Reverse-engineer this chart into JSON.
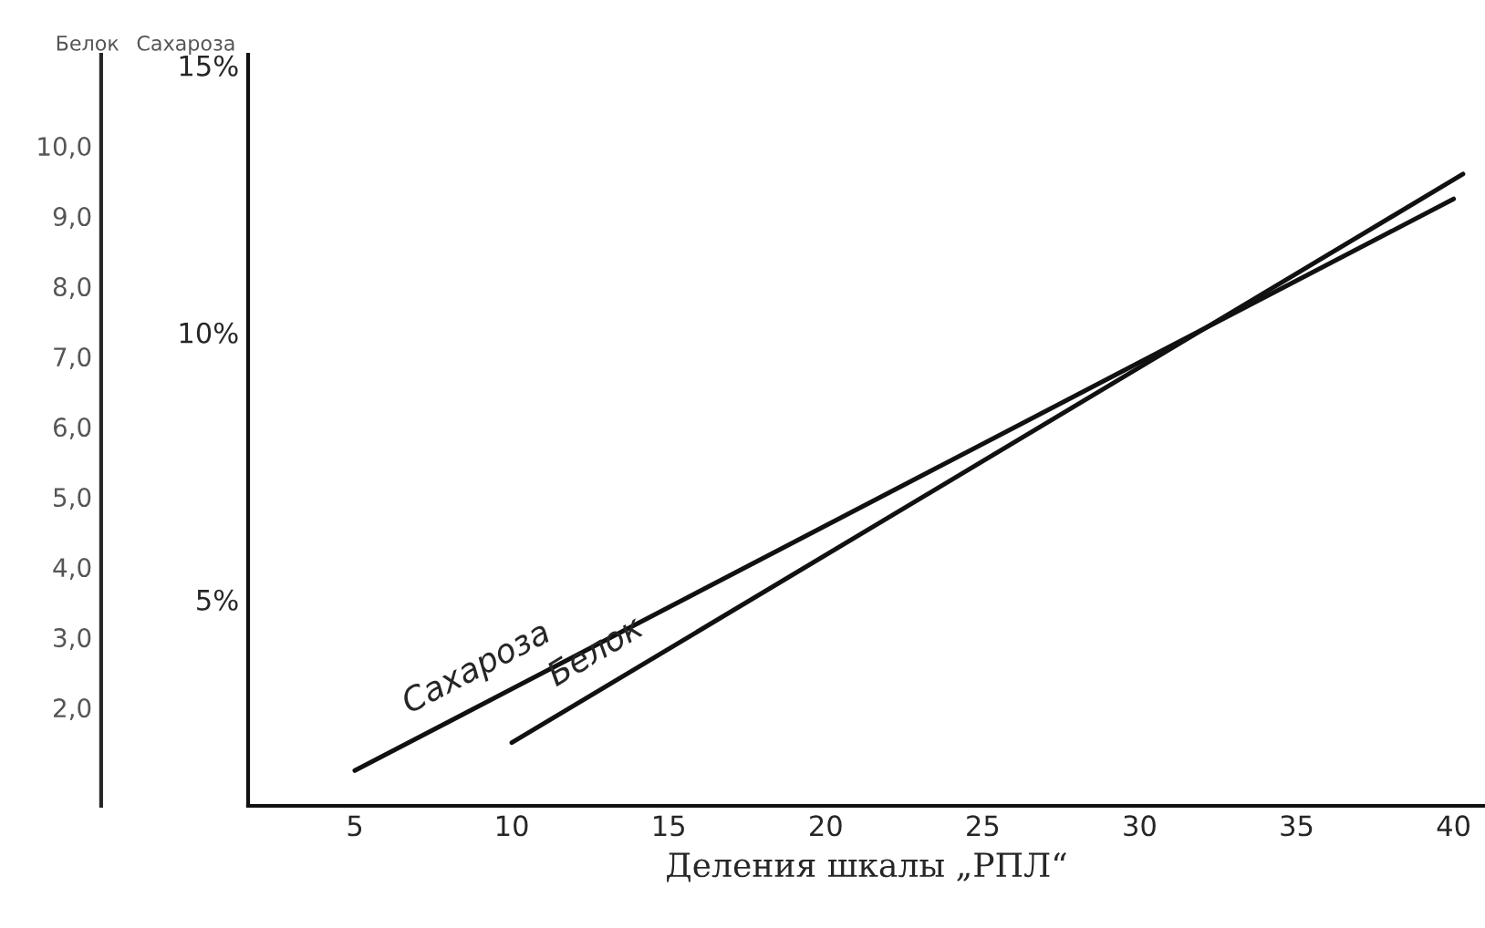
{
  "chart_data": {
    "type": "line",
    "xlabel": "Деления шкалы „РПЛ“",
    "ylabel": "Сахароза",
    "y2label": "Белок",
    "series": [
      {
        "name": "Сахароза",
        "color": "#111111",
        "x": [
          5,
          40
        ],
        "values": [
          1.8,
          12.5
        ]
      },
      {
        "name": "Белок",
        "color": "#111111",
        "axis": "y2",
        "x": [
          10,
          40.3
        ],
        "values": [
          1.5,
          9.6
        ]
      }
    ],
    "xlim": [
      1.6,
      41
    ],
    "xticks": [
      5,
      10,
      15,
      20,
      25,
      30,
      35,
      40
    ],
    "ylim": [
      1.14,
      15.2
    ],
    "yticks": [
      {
        "value": 5,
        "label": "5%"
      },
      {
        "value": 10,
        "label": "10%"
      },
      {
        "value": 15,
        "label": "15%"
      }
    ],
    "y2lim": [
      0.6,
      11.3
    ],
    "y2ticks": [
      {
        "value": 2,
        "label": "2,0"
      },
      {
        "value": 3,
        "label": "3,0"
      },
      {
        "value": 4,
        "label": "4,0"
      },
      {
        "value": 5,
        "label": "5,0"
      },
      {
        "value": 6,
        "label": "6,0"
      },
      {
        "value": 7,
        "label": "7,0"
      },
      {
        "value": 8,
        "label": "8,0"
      },
      {
        "value": 9,
        "label": "9,0"
      },
      {
        "value": 10,
        "label": "10,0"
      }
    ],
    "grid": false,
    "legend": false,
    "marker": "none",
    "line_style": "solid"
  }
}
